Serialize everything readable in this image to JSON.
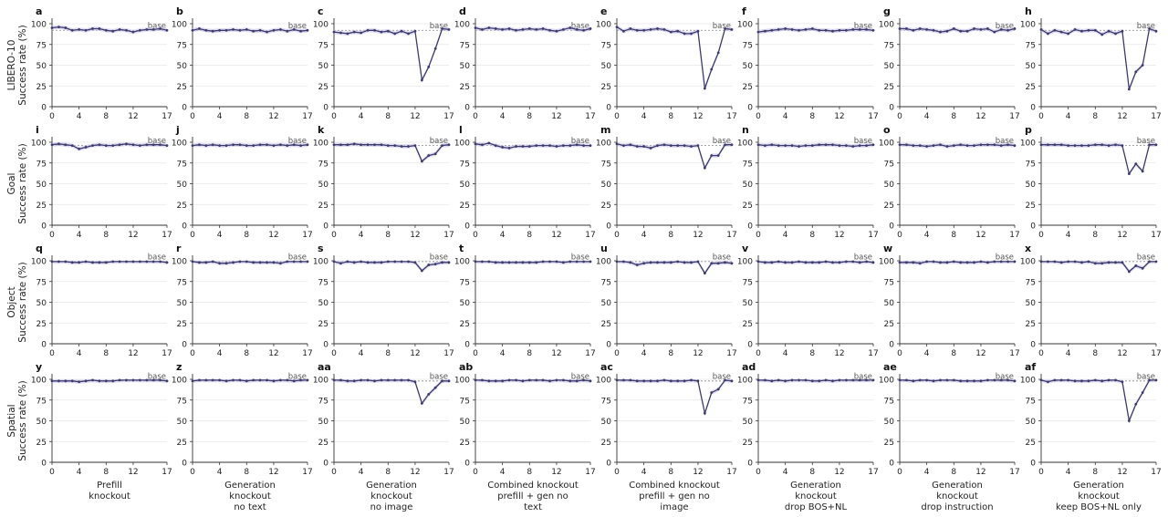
{
  "figure": {
    "row_labels": [
      [
        "LIBERO-10",
        "Success rate (%)"
      ],
      [
        "Goal",
        "Success rate (%)"
      ],
      [
        "Object",
        "Success rate (%)"
      ],
      [
        "Spatial",
        "Success rate (%)"
      ]
    ],
    "col_labels": [
      [
        "Prefill",
        "knockout"
      ],
      [
        "Generation",
        "knockout",
        "no text"
      ],
      [
        "Generation",
        "knockout",
        "no image"
      ],
      [
        "Combined knockout",
        "prefill + gen no",
        "text"
      ],
      [
        "Combined knockout",
        "prefill + gen no",
        "image"
      ],
      [
        "Generation",
        "knockout",
        "drop BOS+NL"
      ],
      [
        "Generation",
        "knockout",
        "drop instruction"
      ],
      [
        "Generation",
        "knockout",
        "keep BOS+NL only"
      ]
    ],
    "baseline_label": "base",
    "colors": {
      "line": "#3d3b6e",
      "band": "#c9c6e6",
      "baseline": "#888888",
      "grid": "#e6e6e6",
      "axis": "#333333"
    }
  },
  "chart_data": {
    "type": "line",
    "x": [
      0,
      1,
      2,
      3,
      4,
      5,
      6,
      7,
      8,
      9,
      10,
      11,
      12,
      13,
      14,
      15,
      16,
      17
    ],
    "xticks": [
      0,
      4,
      8,
      12,
      17
    ],
    "yticks": [
      0,
      25,
      50,
      75,
      100
    ],
    "ylim": [
      0,
      100
    ],
    "xlim": [
      0,
      17
    ],
    "grid": "horizontal",
    "baseline": [
      92,
      96,
      99,
      98
    ],
    "panels": [
      {
        "letter": "a",
        "values": [
          95,
          96,
          95,
          92,
          93,
          92,
          94,
          94,
          92,
          91,
          93,
          92,
          90,
          92,
          93,
          93,
          94,
          92
        ]
      },
      {
        "letter": "b",
        "values": [
          92,
          94,
          92,
          91,
          92,
          92,
          93,
          92,
          93,
          91,
          92,
          90,
          92,
          93,
          91,
          93,
          91,
          92
        ]
      },
      {
        "letter": "c",
        "values": [
          90,
          89,
          88,
          90,
          89,
          92,
          92,
          90,
          91,
          88,
          91,
          88,
          91,
          32,
          48,
          70,
          94,
          93
        ]
      },
      {
        "letter": "d",
        "values": [
          95,
          93,
          95,
          94,
          93,
          94,
          92,
          93,
          94,
          93,
          94,
          92,
          91,
          93,
          95,
          93,
          92,
          94
        ]
      },
      {
        "letter": "e",
        "values": [
          96,
          91,
          94,
          92,
          92,
          93,
          94,
          93,
          90,
          91,
          88,
          88,
          91,
          22,
          45,
          65,
          94,
          93
        ]
      },
      {
        "letter": "f",
        "values": [
          90,
          91,
          92,
          93,
          94,
          93,
          92,
          93,
          94,
          92,
          92,
          91,
          92,
          92,
          93,
          93,
          93,
          92
        ]
      },
      {
        "letter": "g",
        "values": [
          94,
          94,
          92,
          94,
          93,
          92,
          90,
          91,
          94,
          91,
          91,
          94,
          93,
          94,
          90,
          93,
          92,
          94
        ]
      },
      {
        "letter": "h",
        "values": [
          93,
          88,
          92,
          90,
          88,
          93,
          91,
          92,
          92,
          87,
          91,
          88,
          91,
          21,
          42,
          50,
          94,
          91
        ]
      },
      {
        "letter": "i",
        "values": [
          97,
          98,
          97,
          96,
          92,
          94,
          96,
          97,
          96,
          96,
          97,
          98,
          97,
          96,
          97,
          97,
          97,
          96
        ]
      },
      {
        "letter": "j",
        "values": [
          96,
          97,
          96,
          97,
          96,
          96,
          97,
          97,
          96,
          96,
          97,
          97,
          96,
          97,
          96,
          97,
          96,
          97
        ]
      },
      {
        "letter": "k",
        "values": [
          97,
          97,
          97,
          98,
          97,
          97,
          97,
          97,
          96,
          96,
          95,
          95,
          96,
          77,
          84,
          86,
          96,
          97
        ]
      },
      {
        "letter": "l",
        "values": [
          98,
          97,
          99,
          96,
          94,
          93,
          95,
          95,
          95,
          96,
          96,
          96,
          95,
          96,
          96,
          97,
          96,
          96
        ]
      },
      {
        "letter": "m",
        "values": [
          98,
          96,
          97,
          95,
          95,
          93,
          96,
          97,
          96,
          96,
          96,
          95,
          96,
          69,
          84,
          84,
          97,
          97
        ]
      },
      {
        "letter": "n",
        "values": [
          97,
          96,
          97,
          96,
          96,
          96,
          95,
          96,
          96,
          97,
          97,
          97,
          96,
          96,
          95,
          96,
          96,
          97
        ]
      },
      {
        "letter": "o",
        "values": [
          97,
          97,
          96,
          96,
          95,
          96,
          97,
          95,
          96,
          97,
          96,
          96,
          97,
          97,
          97,
          96,
          97,
          96
        ]
      },
      {
        "letter": "p",
        "values": [
          97,
          97,
          97,
          97,
          96,
          96,
          96,
          96,
          97,
          97,
          96,
          97,
          96,
          62,
          74,
          65,
          97,
          97
        ]
      },
      {
        "letter": "q",
        "values": [
          99,
          99,
          99,
          98,
          98,
          99,
          98,
          98,
          98,
          99,
          99,
          99,
          99,
          99,
          99,
          99,
          99,
          98
        ]
      },
      {
        "letter": "r",
        "values": [
          99,
          98,
          98,
          99,
          97,
          97,
          98,
          99,
          99,
          98,
          98,
          98,
          98,
          97,
          99,
          99,
          99,
          99
        ]
      },
      {
        "letter": "s",
        "values": [
          99,
          97,
          99,
          98,
          99,
          98,
          98,
          98,
          99,
          99,
          99,
          99,
          98,
          88,
          95,
          96,
          98,
          98
        ]
      },
      {
        "letter": "t",
        "values": [
          99,
          99,
          99,
          98,
          98,
          98,
          98,
          98,
          98,
          98,
          99,
          99,
          99,
          98,
          99,
          99,
          99,
          99
        ]
      },
      {
        "letter": "u",
        "values": [
          99,
          99,
          98,
          95,
          97,
          98,
          98,
          98,
          98,
          99,
          98,
          98,
          99,
          85,
          97,
          97,
          98,
          97
        ]
      },
      {
        "letter": "v",
        "values": [
          99,
          98,
          98,
          99,
          98,
          98,
          99,
          98,
          98,
          98,
          99,
          98,
          98,
          99,
          99,
          98,
          99,
          98
        ]
      },
      {
        "letter": "w",
        "values": [
          98,
          98,
          98,
          97,
          99,
          99,
          98,
          98,
          99,
          98,
          98,
          98,
          99,
          98,
          99,
          99,
          99,
          99
        ]
      },
      {
        "letter": "x",
        "values": [
          99,
          99,
          99,
          98,
          99,
          99,
          98,
          99,
          97,
          97,
          98,
          98,
          98,
          87,
          94,
          91,
          99,
          99
        ]
      },
      {
        "letter": "y",
        "values": [
          98,
          98,
          98,
          98,
          97,
          98,
          99,
          98,
          98,
          98,
          99,
          99,
          99,
          99,
          99,
          99,
          99,
          98
        ]
      },
      {
        "letter": "z",
        "values": [
          98,
          99,
          99,
          99,
          99,
          98,
          99,
          99,
          98,
          99,
          99,
          99,
          98,
          99,
          99,
          98,
          99,
          99
        ]
      },
      {
        "letter": "aa",
        "values": [
          99,
          99,
          98,
          98,
          99,
          99,
          98,
          99,
          99,
          99,
          99,
          99,
          97,
          71,
          82,
          90,
          98,
          98
        ]
      },
      {
        "letter": "ab",
        "values": [
          99,
          99,
          98,
          98,
          98,
          99,
          99,
          98,
          99,
          99,
          99,
          98,
          99,
          99,
          98,
          98,
          99,
          98
        ]
      },
      {
        "letter": "ac",
        "values": [
          99,
          99,
          99,
          98,
          98,
          98,
          98,
          99,
          98,
          98,
          98,
          99,
          98,
          59,
          84,
          88,
          99,
          98
        ]
      },
      {
        "letter": "ad",
        "values": [
          99,
          99,
          98,
          99,
          98,
          99,
          99,
          99,
          98,
          98,
          99,
          98,
          99,
          99,
          99,
          99,
          99,
          99
        ]
      },
      {
        "letter": "ae",
        "values": [
          99,
          99,
          98,
          99,
          99,
          98,
          99,
          99,
          99,
          98,
          98,
          98,
          98,
          99,
          99,
          99,
          99,
          98
        ]
      },
      {
        "letter": "af",
        "values": [
          99,
          97,
          99,
          99,
          99,
          98,
          98,
          98,
          99,
          98,
          99,
          99,
          97,
          50,
          70,
          84,
          99,
          99
        ]
      }
    ]
  }
}
